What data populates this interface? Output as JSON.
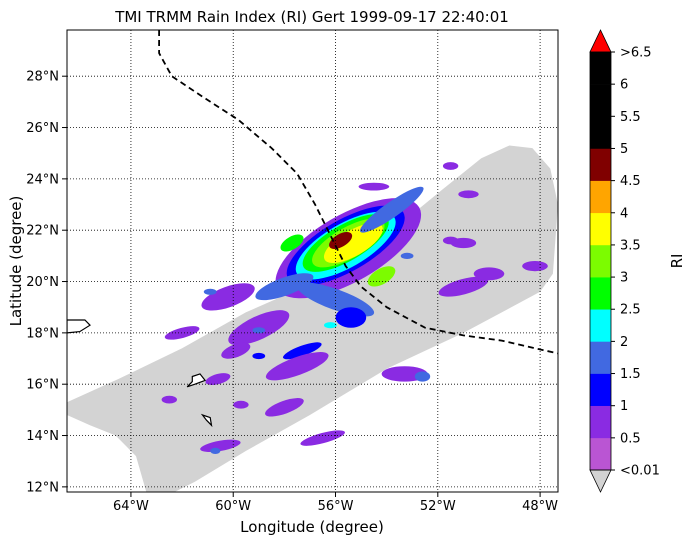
{
  "chart_data": {
    "type": "heatmap",
    "title": "TMI TRMM Rain Index (RI) Gert 1999-09-17 22:40:01",
    "xlabel": "Longitude (degree)",
    "ylabel": "Latitude (degree)",
    "xlim": [
      -66.5,
      -47.3
    ],
    "ylim": [
      11.8,
      29.8
    ],
    "x_ticks": [
      {
        "value": -64,
        "label": "64°W"
      },
      {
        "value": -60,
        "label": "60°W"
      },
      {
        "value": -56,
        "label": "56°W"
      },
      {
        "value": -52,
        "label": "52°W"
      },
      {
        "value": -48,
        "label": "48°W"
      }
    ],
    "y_ticks": [
      {
        "value": 12,
        "label": "12°N"
      },
      {
        "value": 14,
        "label": "14°N"
      },
      {
        "value": 16,
        "label": "16°N"
      },
      {
        "value": 18,
        "label": "18°N"
      },
      {
        "value": 20,
        "label": "20°N"
      },
      {
        "value": 22,
        "label": "22°N"
      },
      {
        "value": 24,
        "label": "24°N"
      },
      {
        "value": 26,
        "label": "26°N"
      },
      {
        "value": 28,
        "label": "28°N"
      }
    ],
    "grid": true,
    "grid_style": "dotted",
    "swath_color": "#d3d3d3",
    "swath_outline": [
      [
        -66.5,
        15.3
      ],
      [
        -64.5,
        16.2
      ],
      [
        -62.0,
        17.4
      ],
      [
        -59.5,
        18.8
      ],
      [
        -56.3,
        20.2
      ],
      [
        -54.0,
        21.8
      ],
      [
        -51.8,
        23.6
      ],
      [
        -50.3,
        24.8
      ],
      [
        -49.2,
        25.3
      ],
      [
        -48.3,
        25.2
      ],
      [
        -47.6,
        24.4
      ],
      [
        -47.3,
        23.0
      ],
      [
        -47.5,
        20.3
      ],
      [
        -48.0,
        19.6
      ],
      [
        -51.0,
        18.0
      ],
      [
        -54.0,
        16.6
      ],
      [
        -57.0,
        14.8
      ],
      [
        -59.5,
        13.4
      ],
      [
        -61.5,
        12.2
      ],
      [
        -62.3,
        11.8
      ],
      [
        -63.4,
        11.8
      ],
      [
        -63.8,
        13.2
      ],
      [
        -64.6,
        14.0
      ],
      [
        -65.6,
        14.4
      ],
      [
        -66.5,
        14.8
      ]
    ],
    "rain_cells": [
      {
        "lon": -55.5,
        "lat": 21.3,
        "rx": 3.2,
        "ry": 1.3,
        "rot": 30,
        "ri": 0.5
      },
      {
        "lon": -55.6,
        "lat": 21.4,
        "rx": 2.6,
        "ry": 1.0,
        "rot": 30,
        "ri": 1.0
      },
      {
        "lon": -55.6,
        "lat": 21.4,
        "rx": 2.2,
        "ry": 0.85,
        "rot": 30,
        "ri": 2.0
      },
      {
        "lon": -55.6,
        "lat": 21.5,
        "rx": 1.9,
        "ry": 0.7,
        "rot": 30,
        "ri": 2.5
      },
      {
        "lon": -55.5,
        "lat": 21.5,
        "rx": 1.6,
        "ry": 0.6,
        "rot": 30,
        "ri": 3.0
      },
      {
        "lon": -55.3,
        "lat": 21.5,
        "rx": 1.3,
        "ry": 0.5,
        "rot": 30,
        "ri": 3.5
      },
      {
        "lon": -55.8,
        "lat": 21.6,
        "rx": 0.5,
        "ry": 0.25,
        "rot": 30,
        "ri": 4.5
      },
      {
        "lon": -58.0,
        "lat": 19.8,
        "rx": 1.2,
        "ry": 0.35,
        "rot": 20,
        "ri": 1.5
      },
      {
        "lon": -56.0,
        "lat": 19.3,
        "rx": 1.6,
        "ry": 0.4,
        "rot": -20,
        "ri": 1.5
      },
      {
        "lon": -55.4,
        "lat": 18.6,
        "rx": 0.6,
        "ry": 0.4,
        "rot": 0,
        "ri": 1.0
      },
      {
        "lon": -57.3,
        "lat": 17.3,
        "rx": 0.8,
        "ry": 0.2,
        "rot": 20,
        "ri": 1.0
      },
      {
        "lon": -53.8,
        "lat": 22.8,
        "rx": 1.5,
        "ry": 0.3,
        "rot": 35,
        "ri": 1.5
      },
      {
        "lon": -57.7,
        "lat": 21.5,
        "rx": 0.5,
        "ry": 0.25,
        "rot": 30,
        "ri": 2.5
      },
      {
        "lon": -54.2,
        "lat": 20.2,
        "rx": 0.6,
        "ry": 0.3,
        "rot": 30,
        "ri": 3.0
      },
      {
        "lon": -60.2,
        "lat": 19.4,
        "rx": 1.1,
        "ry": 0.4,
        "rot": 20,
        "ri": 0.5
      },
      {
        "lon": -59.0,
        "lat": 18.2,
        "rx": 1.3,
        "ry": 0.45,
        "rot": 25,
        "ri": 0.5
      },
      {
        "lon": -57.5,
        "lat": 16.7,
        "rx": 1.3,
        "ry": 0.35,
        "rot": 20,
        "ri": 0.5
      },
      {
        "lon": -59.9,
        "lat": 17.3,
        "rx": 0.6,
        "ry": 0.25,
        "rot": 20,
        "ri": 0.5
      },
      {
        "lon": -58.0,
        "lat": 15.1,
        "rx": 0.8,
        "ry": 0.25,
        "rot": 20,
        "ri": 0.5
      },
      {
        "lon": -60.5,
        "lat": 13.6,
        "rx": 0.8,
        "ry": 0.2,
        "rot": 10,
        "ri": 0.5
      },
      {
        "lon": -60.7,
        "lat": 13.4,
        "rx": 0.2,
        "ry": 0.12,
        "rot": 0,
        "ri": 1.5
      },
      {
        "lon": -56.5,
        "lat": 13.9,
        "rx": 0.9,
        "ry": 0.2,
        "rot": 15,
        "ri": 0.5
      },
      {
        "lon": -53.3,
        "lat": 16.4,
        "rx": 0.9,
        "ry": 0.3,
        "rot": 0,
        "ri": 0.5
      },
      {
        "lon": -52.6,
        "lat": 16.3,
        "rx": 0.3,
        "ry": 0.2,
        "rot": 0,
        "ri": 1.5
      },
      {
        "lon": -51.0,
        "lat": 19.8,
        "rx": 1.0,
        "ry": 0.3,
        "rot": 15,
        "ri": 0.5
      },
      {
        "lon": -50.0,
        "lat": 20.3,
        "rx": 0.6,
        "ry": 0.25,
        "rot": 0,
        "ri": 0.5
      },
      {
        "lon": -48.2,
        "lat": 20.6,
        "rx": 0.5,
        "ry": 0.2,
        "rot": 0,
        "ri": 0.5
      },
      {
        "lon": -51.0,
        "lat": 21.5,
        "rx": 0.5,
        "ry": 0.2,
        "rot": 0,
        "ri": 0.5
      },
      {
        "lon": -54.5,
        "lat": 23.7,
        "rx": 0.6,
        "ry": 0.15,
        "rot": 0,
        "ri": 0.5
      },
      {
        "lon": -51.5,
        "lat": 24.5,
        "rx": 0.3,
        "ry": 0.15,
        "rot": 0,
        "ri": 0.5
      },
      {
        "lon": -50.8,
        "lat": 23.4,
        "rx": 0.4,
        "ry": 0.15,
        "rot": 0,
        "ri": 0.5
      },
      {
        "lon": -62.0,
        "lat": 18.0,
        "rx": 0.7,
        "ry": 0.2,
        "rot": 15,
        "ri": 0.5
      },
      {
        "lon": -60.6,
        "lat": 16.2,
        "rx": 0.5,
        "ry": 0.2,
        "rot": 15,
        "ri": 0.5
      },
      {
        "lon": -62.5,
        "lat": 15.4,
        "rx": 0.3,
        "ry": 0.15,
        "rot": 0,
        "ri": 0.5
      },
      {
        "lon": -59.7,
        "lat": 15.2,
        "rx": 0.3,
        "ry": 0.15,
        "rot": 0,
        "ri": 0.5
      },
      {
        "lon": -60.9,
        "lat": 19.6,
        "rx": 0.25,
        "ry": 0.12,
        "rot": 0,
        "ri": 1.5
      },
      {
        "lon": -59.0,
        "lat": 18.1,
        "rx": 0.25,
        "ry": 0.12,
        "rot": 0,
        "ri": 1.5
      },
      {
        "lon": -56.2,
        "lat": 18.3,
        "rx": 0.25,
        "ry": 0.12,
        "rot": 0,
        "ri": 2.0
      },
      {
        "lon": -51.5,
        "lat": 21.6,
        "rx": 0.3,
        "ry": 0.15,
        "rot": 0,
        "ri": 0.5
      },
      {
        "lon": -53.2,
        "lat": 21.0,
        "rx": 0.25,
        "ry": 0.12,
        "rot": 0,
        "ri": 1.5
      },
      {
        "lon": -59.0,
        "lat": 17.1,
        "rx": 0.25,
        "ry": 0.12,
        "rot": 0,
        "ri": 1.0
      }
    ],
    "track": {
      "color": "#000000",
      "style": "dashed",
      "points": [
        [
          -62.9,
          29.8
        ],
        [
          -62.9,
          28.9
        ],
        [
          -62.4,
          28.0
        ],
        [
          -61.2,
          27.2
        ],
        [
          -59.8,
          26.3
        ],
        [
          -58.5,
          25.2
        ],
        [
          -57.5,
          24.2
        ],
        [
          -56.8,
          23.0
        ],
        [
          -56.2,
          21.8
        ],
        [
          -55.6,
          20.6
        ],
        [
          -55.0,
          19.8
        ],
        [
          -54.0,
          19.0
        ],
        [
          -52.5,
          18.2
        ],
        [
          -51.0,
          17.9
        ],
        [
          -49.5,
          17.7
        ],
        [
          -48.2,
          17.4
        ],
        [
          -47.3,
          17.2
        ]
      ]
    },
    "islands": [
      [
        [
          -66.5,
          18.5
        ],
        [
          -65.8,
          18.5
        ],
        [
          -65.6,
          18.3
        ],
        [
          -66.0,
          18.05
        ],
        [
          -66.5,
          18.0
        ]
      ],
      [
        [
          -61.6,
          16.3
        ],
        [
          -61.3,
          16.4
        ],
        [
          -61.1,
          16.15
        ],
        [
          -61.5,
          16.0
        ],
        [
          -61.8,
          15.9
        ],
        [
          -61.6,
          16.1
        ]
      ],
      [
        [
          -61.2,
          14.8
        ],
        [
          -60.9,
          14.7
        ],
        [
          -60.85,
          14.4
        ],
        [
          -61.05,
          14.6
        ]
      ]
    ],
    "colorbar": {
      "label": "RI",
      "extend_max_color": "#ff0000",
      "extend_min_color": "#d3d3d3",
      "bins": [
        {
          "from": 0.01,
          "to": 0.5,
          "color": "#ba55d3"
        },
        {
          "from": 0.5,
          "to": 1.0,
          "color": "#8a2be2"
        },
        {
          "from": 1.0,
          "to": 1.5,
          "color": "#0000ff"
        },
        {
          "from": 1.5,
          "to": 2.0,
          "color": "#4169e1"
        },
        {
          "from": 2.0,
          "to": 2.5,
          "color": "#00ffff"
        },
        {
          "from": 2.5,
          "to": 3.0,
          "color": "#00ff00"
        },
        {
          "from": 3.0,
          "to": 3.5,
          "color": "#7cfc00"
        },
        {
          "from": 3.5,
          "to": 4.0,
          "color": "#ffff00"
        },
        {
          "from": 4.0,
          "to": 4.5,
          "color": "#ffa500"
        },
        {
          "from": 4.5,
          "to": 5.0,
          "color": "#800000"
        },
        {
          "from": 5.0,
          "to": 5.5,
          "color": "#000000"
        },
        {
          "from": 5.5,
          "to": 6.0,
          "color": "#000000"
        },
        {
          "from": 6.0,
          "to": 6.5,
          "color": "#000000"
        }
      ],
      "tick_labels": [
        "<0.01",
        "0.5",
        "1",
        "1.5",
        "2",
        "2.5",
        "3",
        "3.5",
        "4",
        "4.5",
        "5",
        "5.5",
        "6",
        ">6.5"
      ]
    }
  }
}
